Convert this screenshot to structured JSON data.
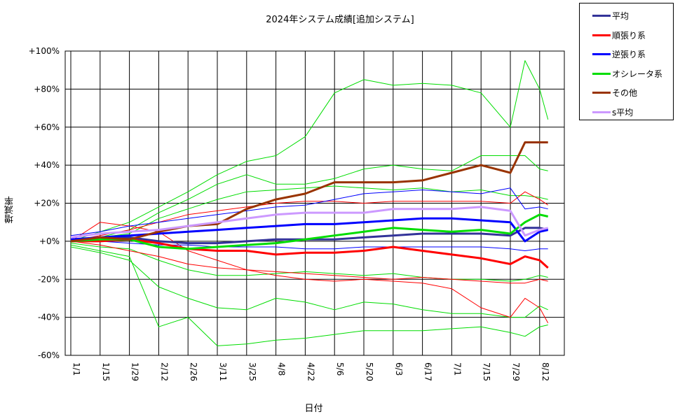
{
  "chart_data": {
    "type": "line",
    "title": "2024年システム成績[追加システム]",
    "xlabel": "日付",
    "ylabel": "増減率",
    "x_ticks": [
      "1/1",
      "1/15",
      "1/29",
      "2/12",
      "2/26",
      "3/11",
      "3/25",
      "4/8",
      "4/22",
      "5/6",
      "5/20",
      "6/3",
      "6/17",
      "7/1",
      "7/15",
      "7/29",
      "8/12"
    ],
    "y_ticks": [
      "+100%",
      "+80%",
      "+60%",
      "+40%",
      "+20%",
      "+0%",
      "-20%",
      "-40%",
      "-60%"
    ],
    "ylim": [
      -60,
      100
    ],
    "grid": true,
    "legend_position": "top-right, outside plot",
    "x_values": [
      "1/1",
      "1/15",
      "1/29",
      "2/12",
      "2/26",
      "3/11",
      "3/25",
      "4/8",
      "4/22",
      "5/6",
      "5/20",
      "6/3",
      "6/17",
      "7/1",
      "7/15",
      "7/29",
      "8/5",
      "8/12",
      "8/16"
    ],
    "series": [
      {
        "name": "平均",
        "color": "#333399",
        "bold": true,
        "values": [
          0,
          1,
          2,
          0,
          -1,
          -1,
          0,
          1,
          1,
          1,
          2,
          3,
          4,
          4,
          4,
          3,
          7,
          7,
          6
        ]
      },
      {
        "name": "順張り系",
        "color": "#ff0000",
        "bold": true,
        "values": [
          0,
          0,
          1,
          -1,
          -4,
          -5,
          -5,
          -7,
          -6,
          -6,
          -5,
          -3,
          -5,
          -7,
          -9,
          -12,
          -8,
          -10,
          -14
        ]
      },
      {
        "name": "逆張り系",
        "color": "#0000ff",
        "bold": true,
        "values": [
          1,
          2,
          3,
          4,
          5,
          6,
          7,
          8,
          9,
          9,
          10,
          11,
          12,
          12,
          11,
          10,
          0,
          5,
          6
        ]
      },
      {
        "name": "オシレータ系",
        "color": "#00dd00",
        "bold": true,
        "values": [
          0,
          1,
          1,
          -3,
          -4,
          -3,
          -2,
          -1,
          1,
          3,
          5,
          7,
          6,
          5,
          6,
          4,
          10,
          14,
          13
        ]
      },
      {
        "name": "その他",
        "color": "#993300",
        "bold": true,
        "values": [
          0,
          2,
          1,
          5,
          8,
          9,
          17,
          22,
          25,
          31,
          31,
          31,
          32,
          36,
          40,
          36,
          52,
          52,
          52
        ]
      },
      {
        "name": "s平均",
        "color": "#cc99ff",
        "bold": true,
        "values": [
          2,
          4,
          5,
          6,
          8,
          10,
          12,
          14,
          15,
          15,
          15,
          17,
          17,
          17,
          18,
          16,
          3,
          6,
          7
        ]
      },
      {
        "name": "",
        "color": "#00dd00",
        "bold": false,
        "values": [
          0,
          5,
          10,
          18,
          26,
          35,
          42,
          45,
          55,
          78,
          85,
          82,
          83,
          82,
          78,
          60,
          95,
          80,
          64
        ]
      },
      {
        "name": "",
        "color": "#00dd00",
        "bold": false,
        "values": [
          -2,
          -5,
          -8,
          -45,
          -40,
          -55,
          -54,
          -52,
          -51,
          -49,
          -47,
          -47,
          -47,
          -46,
          -45,
          -48,
          -50,
          -45,
          -44
        ]
      },
      {
        "name": "",
        "color": "#00dd00",
        "bold": false,
        "values": [
          0,
          2,
          6,
          15,
          22,
          30,
          35,
          30,
          30,
          33,
          38,
          40,
          38,
          37,
          45,
          45,
          45,
          38,
          37
        ]
      },
      {
        "name": "",
        "color": "#00dd00",
        "bold": false,
        "values": [
          -3,
          -6,
          -10,
          -24,
          -30,
          -35,
          -36,
          -30,
          -32,
          -36,
          -32,
          -33,
          -36,
          -38,
          -38,
          -40,
          -40,
          -34,
          -36
        ]
      },
      {
        "name": "",
        "color": "#00dd00",
        "bold": false,
        "values": [
          0,
          2,
          4,
          12,
          17,
          22,
          26,
          27,
          28,
          29,
          28,
          27,
          28,
          26,
          27,
          24,
          24,
          23,
          22
        ]
      },
      {
        "name": "",
        "color": "#00dd00",
        "bold": false,
        "values": [
          -1,
          -3,
          -4,
          -10,
          -15,
          -18,
          -18,
          -17,
          -16,
          -17,
          -18,
          -17,
          -19,
          -20,
          -20,
          -21,
          -20,
          -18,
          -19
        ]
      },
      {
        "name": "",
        "color": "#ff0000",
        "bold": false,
        "values": [
          0,
          10,
          8,
          5,
          -5,
          -10,
          -15,
          -18,
          -20,
          -21,
          -20,
          -21,
          -22,
          -25,
          -35,
          -40,
          -30,
          -35,
          -43
        ]
      },
      {
        "name": "",
        "color": "#ff0000",
        "bold": false,
        "values": [
          0,
          3,
          6,
          10,
          14,
          16,
          18,
          20,
          21,
          21,
          20,
          21,
          21,
          21,
          21,
          20,
          26,
          22,
          19
        ]
      },
      {
        "name": "",
        "color": "#ff0000",
        "bold": false,
        "values": [
          0,
          -2,
          -5,
          -8,
          -12,
          -14,
          -15,
          -16,
          -17,
          -18,
          -19,
          -20,
          -19,
          -20,
          -21,
          -22,
          -22,
          -20,
          -21
        ]
      },
      {
        "name": "",
        "color": "#0000ff",
        "bold": false,
        "values": [
          3,
          5,
          8,
          10,
          12,
          14,
          16,
          18,
          19,
          22,
          25,
          26,
          27,
          26,
          25,
          28,
          17,
          18,
          17
        ]
      },
      {
        "name": "",
        "color": "#0000ff",
        "bold": false,
        "values": [
          1,
          0,
          -1,
          -2,
          -2,
          -3,
          -3,
          -3,
          -4,
          -4,
          -3,
          -3,
          -3,
          -3,
          -3,
          -4,
          -5,
          -4,
          -4
        ]
      }
    ]
  }
}
